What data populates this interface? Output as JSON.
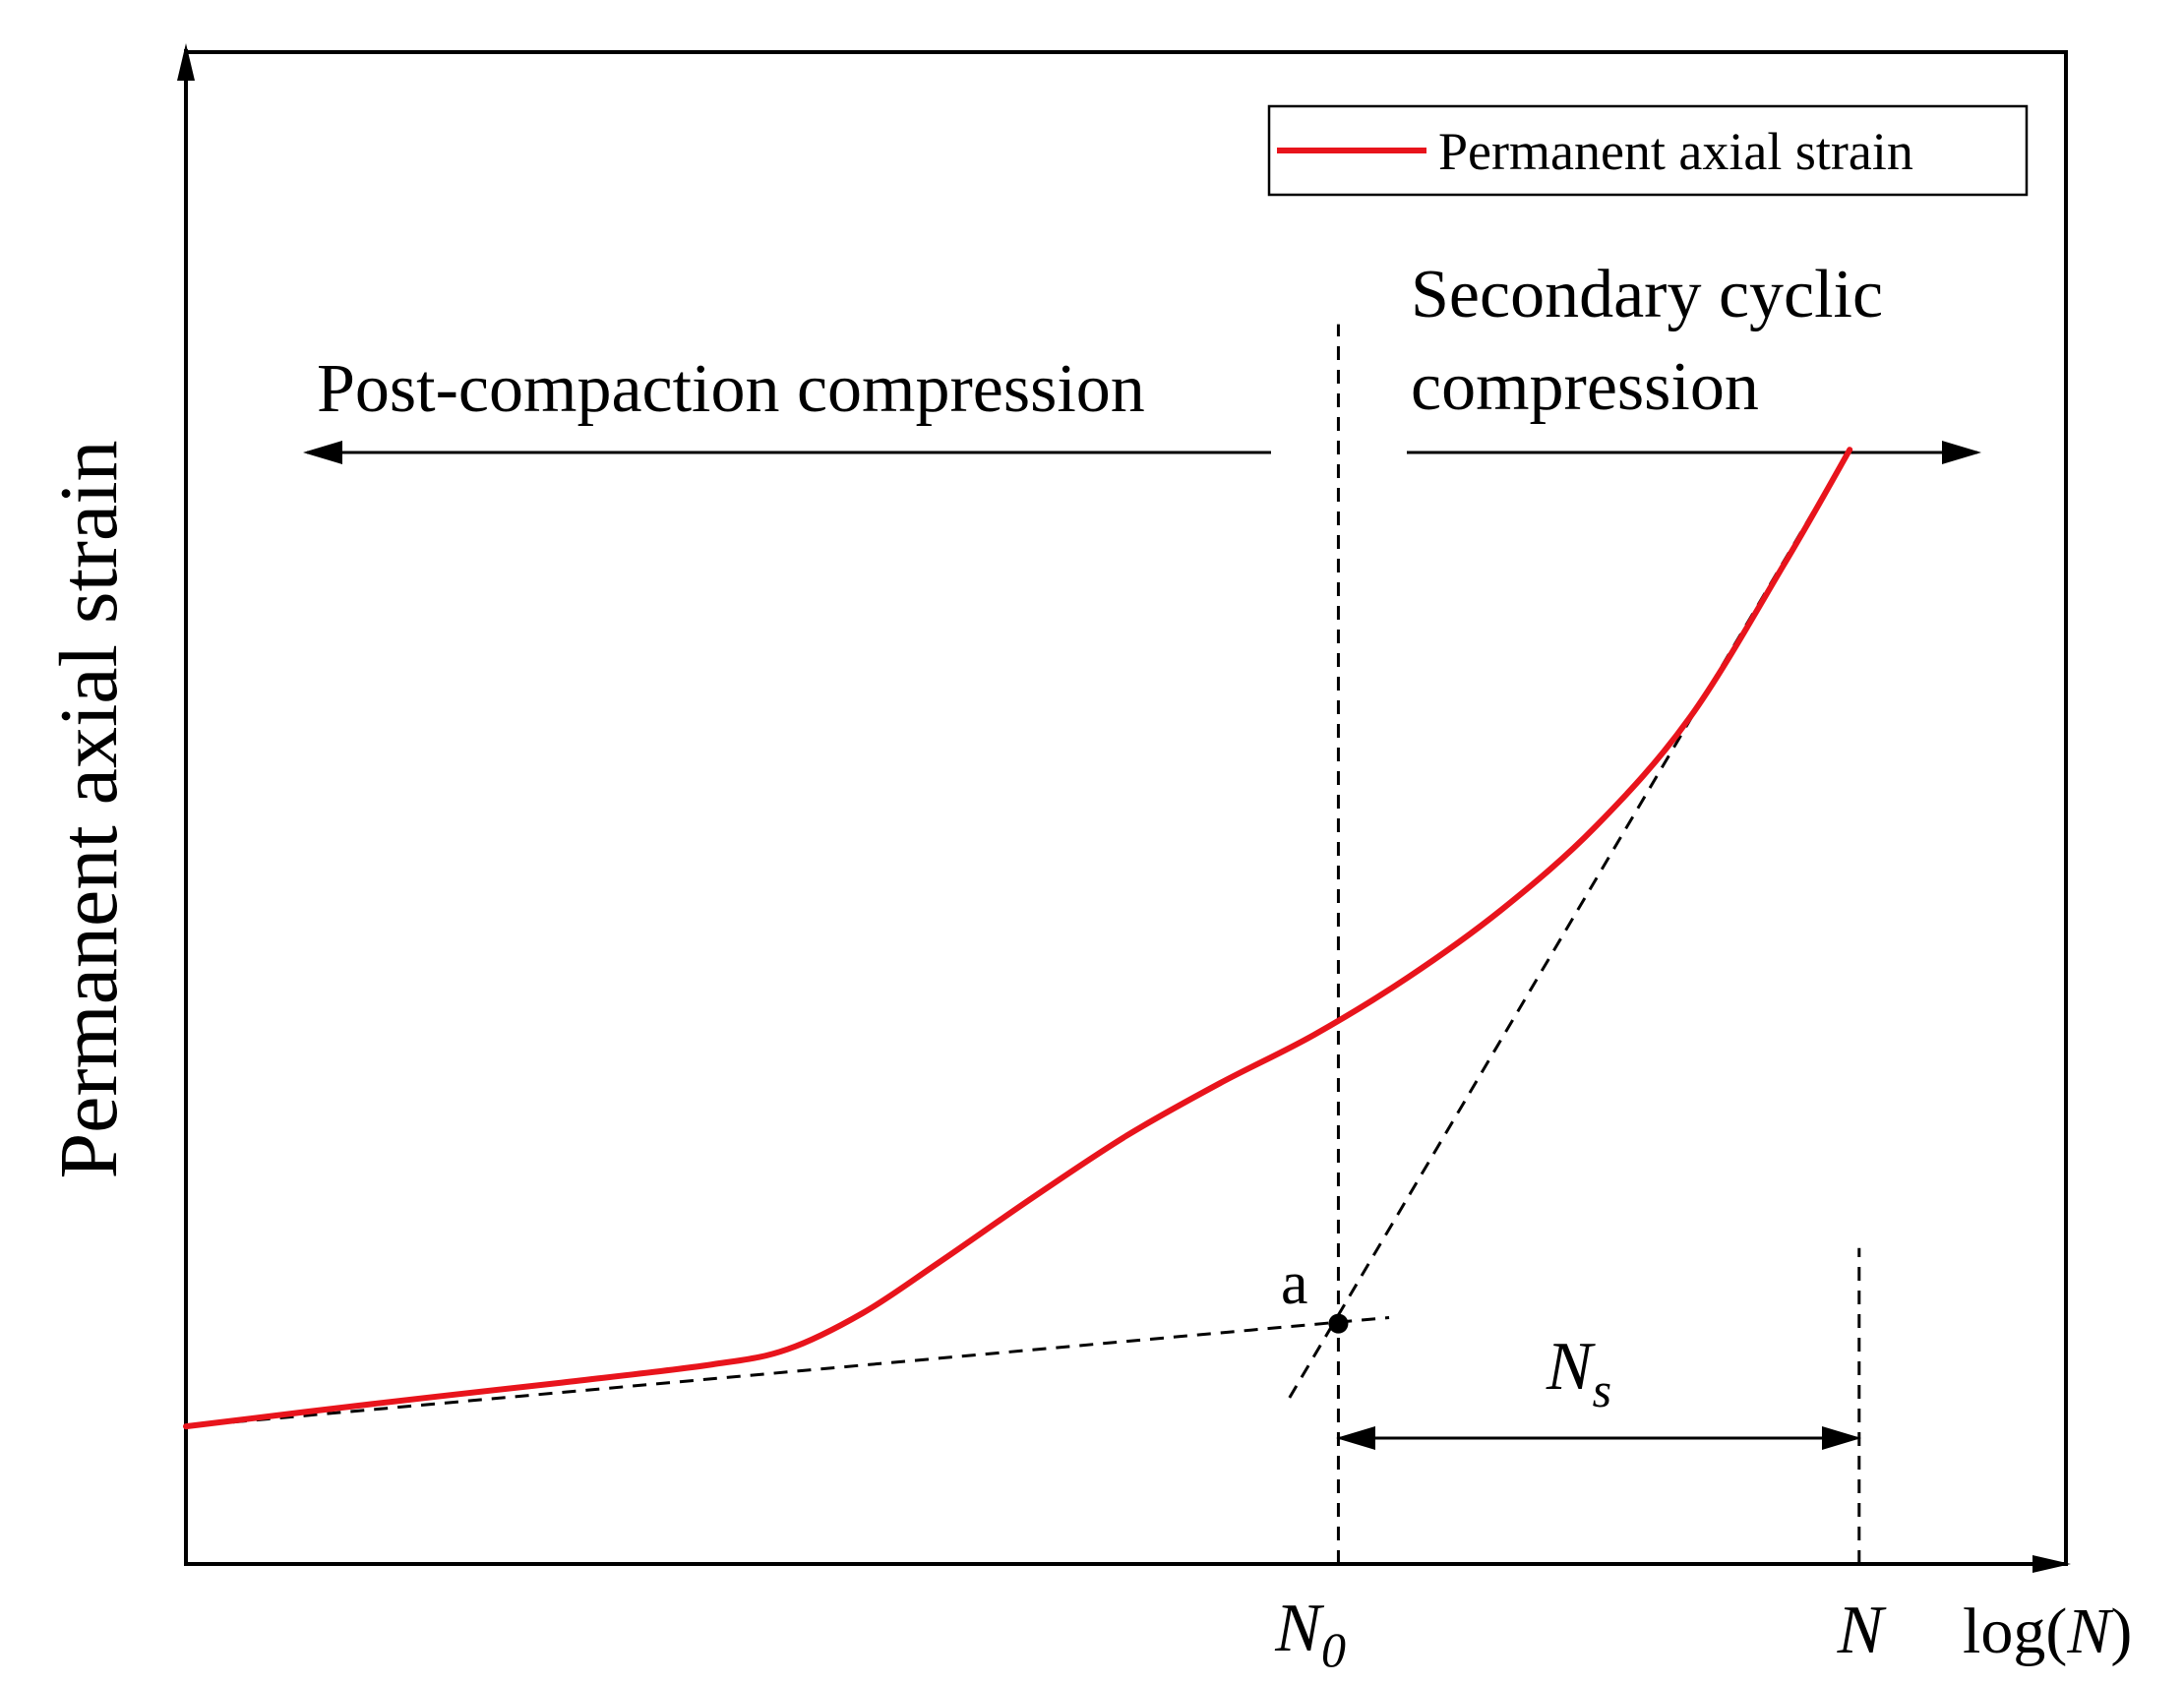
{
  "chart_data": {
    "type": "line",
    "title": "",
    "xlabel": "log(N)",
    "ylabel": "Permanent axial strain",
    "xlim": [
      0,
      1
    ],
    "ylim": [
      0,
      1
    ],
    "grid": false,
    "legend": {
      "entries": [
        "Permanent axial strain"
      ],
      "placement": "top-right"
    },
    "series": [
      {
        "name": "Permanent axial strain",
        "color": "#e8141c",
        "x": [
          0.0,
          0.1,
          0.2,
          0.28,
          0.32,
          0.36,
          0.4,
          0.45,
          0.5,
          0.55,
          0.6,
          0.65,
          0.7,
          0.75,
          0.8,
          0.85,
          0.885
        ],
        "y": [
          0.091,
          0.106,
          0.12,
          0.132,
          0.142,
          0.166,
          0.199,
          0.242,
          0.283,
          0.318,
          0.35,
          0.388,
          0.433,
          0.488,
          0.56,
          0.661,
          0.737
        ]
      }
    ],
    "tangent_lines": [
      {
        "name": "initial-tangent",
        "x": [
          0.0,
          0.64
        ],
        "y": [
          0.091,
          0.163
        ]
      },
      {
        "name": "secondary-tangent",
        "x": [
          0.587,
          0.885
        ],
        "y": [
          0.11,
          0.737
        ]
      }
    ],
    "reference_lines_x": [
      {
        "name": "N0",
        "x": 0.613,
        "y": [
          0,
          0.82
        ]
      },
      {
        "name": "N",
        "x": 0.89,
        "y": [
          0,
          0.209
        ]
      }
    ],
    "point_a": {
      "label": "a",
      "x": 0.613,
      "y": 0.159
    },
    "tick_labels": {
      "N0_main": "N",
      "N0_sub": "0",
      "N": "N"
    },
    "ns_label": {
      "main": "N",
      "sub": "s"
    },
    "regions": {
      "left": {
        "label": "Post-compaction compression",
        "x_range": [
          0.062,
          0.578
        ]
      },
      "right": {
        "line1": "Secondary cyclic",
        "line2": "compression",
        "x_range": [
          0.649,
          0.951
        ]
      }
    },
    "colors": {
      "axis": "#000000",
      "curve": "#e8141c",
      "dashed": "#000000"
    }
  }
}
